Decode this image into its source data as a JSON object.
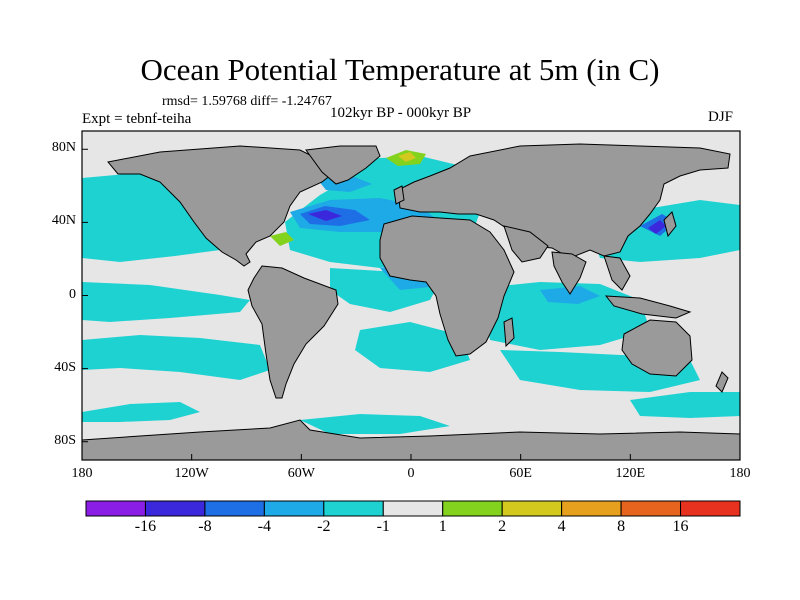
{
  "figure": {
    "title": "Ocean Potential Temperature at 5m (in C)",
    "stats": "rmsd= 1.59768 diff= -1.24767",
    "experiment": "Expt = tebnf-teiha",
    "period": "102kyr BP - 000kyr BP",
    "season": "DJF"
  },
  "chart_data": {
    "type": "heatmap",
    "title": "Ocean Potential Temperature at 5m (in C)",
    "projection": "cylindrical equidistant",
    "xlim": [
      -180,
      180
    ],
    "ylim": [
      -90,
      90
    ],
    "x_ticks": [
      {
        "value": -180,
        "label": "180"
      },
      {
        "value": -120,
        "label": "120W"
      },
      {
        "value": -60,
        "label": "60W"
      },
      {
        "value": 0,
        "label": "0"
      },
      {
        "value": 60,
        "label": "60E"
      },
      {
        "value": 120,
        "label": "120E"
      },
      {
        "value": 180,
        "label": "180"
      }
    ],
    "y_ticks": [
      {
        "value": 80,
        "label": "80N"
      },
      {
        "value": 40,
        "label": "40N"
      },
      {
        "value": 0,
        "label": "0"
      },
      {
        "value": -40,
        "label": "40S"
      },
      {
        "value": -80,
        "label": "80S"
      }
    ],
    "colorbar": {
      "levels": [
        -16,
        -8,
        -4,
        -2,
        -1,
        1,
        2,
        4,
        8,
        16
      ],
      "labels": [
        {
          "value": -16,
          "label": "-16"
        },
        {
          "value": -8,
          "label": "-8"
        },
        {
          "value": -4,
          "label": "-4"
        },
        {
          "value": -2,
          "label": "-2"
        },
        {
          "value": -1,
          "label": "-1"
        },
        {
          "value": 1,
          "label": "1"
        },
        {
          "value": 2,
          "label": "2"
        },
        {
          "value": 4,
          "label": "4"
        },
        {
          "value": 8,
          "label": "8"
        },
        {
          "value": 16,
          "label": "16"
        }
      ],
      "colors": [
        "#8a1ee6",
        "#3c28dc",
        "#1e6ee6",
        "#1eaae6",
        "#1ed2d2",
        "#e6e6e6",
        "#82d21e",
        "#d2c81e",
        "#e6a01e",
        "#e6641e",
        "#e6321e"
      ]
    },
    "land_color": "#9a9a9a",
    "ocean_background_color": "#e6e6e6"
  }
}
